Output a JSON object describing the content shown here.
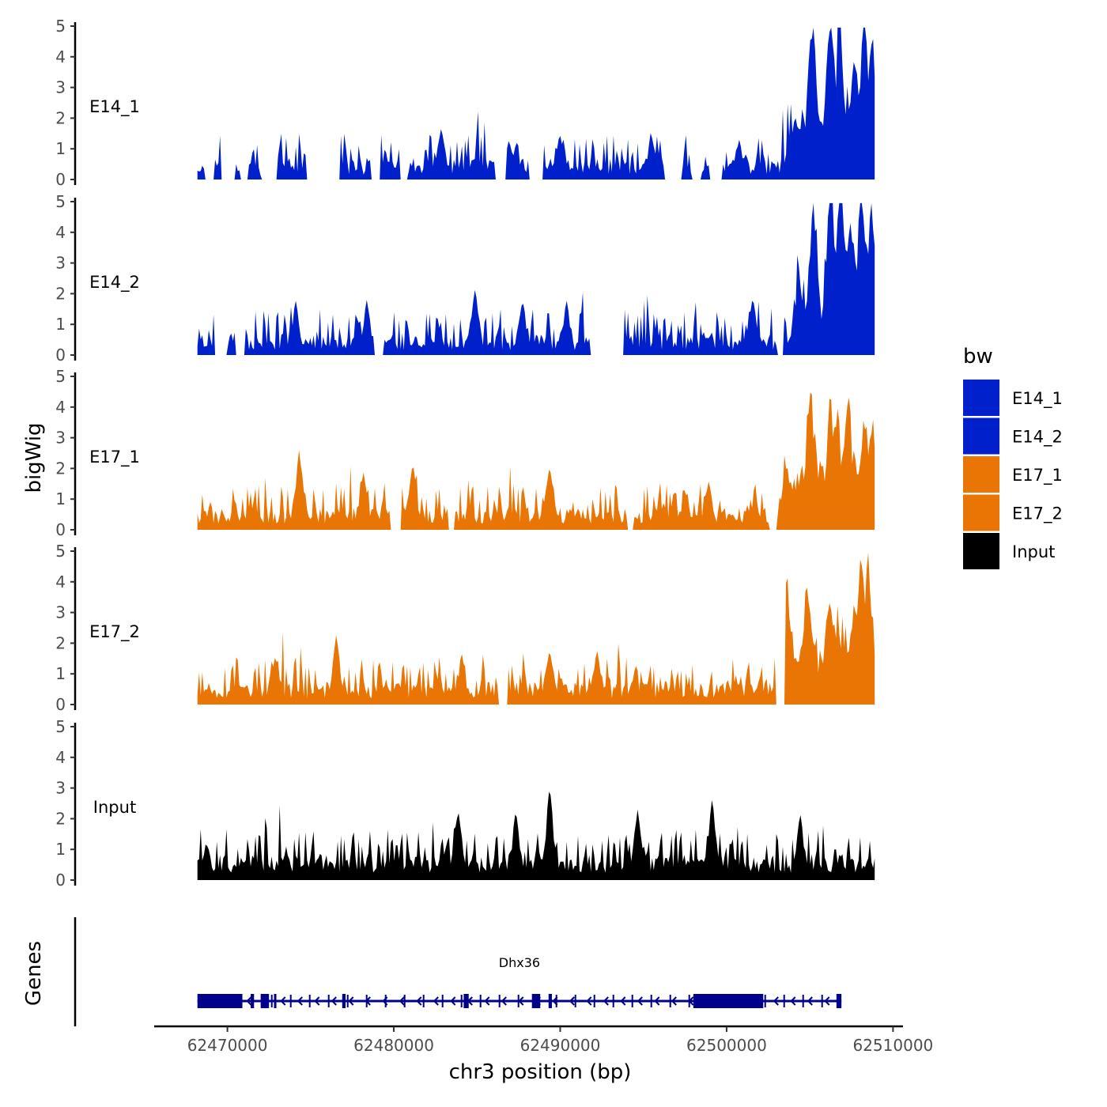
{
  "chart_data": {
    "type": "area",
    "ylabel": "bigWig",
    "xlabel": "chr3 position (bp)",
    "gene_track_label": "Genes",
    "ylim": [
      0,
      5
    ],
    "y_ticks": [
      "0",
      "1",
      "2",
      "3",
      "4",
      "5"
    ],
    "xlim": [
      62465600,
      62510600
    ],
    "x_ticks": [
      62470000,
      62480000,
      62490000,
      62500000,
      62510000
    ],
    "x_tick_labels": [
      "62470000",
      "62480000",
      "62490000",
      "62500000",
      "62510000"
    ],
    "data_range": [
      62468200,
      62508900
    ],
    "legend": {
      "title": "bw",
      "entries": [
        {
          "name": "E14_1",
          "color": "#0020CC"
        },
        {
          "name": "E14_2",
          "color": "#0020CC"
        },
        {
          "name": "E17_1",
          "color": "#E87504"
        },
        {
          "name": "E17_2",
          "color": "#E87504"
        },
        {
          "name": "Input",
          "color": "#000000"
        }
      ]
    },
    "series": [
      {
        "name": "E14_1",
        "color": "#0020CC",
        "gaps": [
          [
            0.01,
            0.025
          ],
          [
            0.035,
            0.055
          ],
          [
            0.062,
            0.075
          ],
          [
            0.095,
            0.118
          ],
          [
            0.16,
            0.21
          ],
          [
            0.255,
            0.27
          ],
          [
            0.3,
            0.31
          ],
          [
            0.44,
            0.455
          ],
          [
            0.49,
            0.51
          ],
          [
            0.69,
            0.715
          ],
          [
            0.73,
            0.745
          ],
          [
            0.755,
            0.775
          ]
        ],
        "peaks": [
          [
            0.908,
            3.9
          ],
          [
            0.935,
            4.5
          ],
          [
            0.948,
            4.1
          ],
          [
            0.97,
            3.2
          ],
          [
            0.985,
            4.4
          ],
          [
            0.996,
            3.3
          ],
          [
            0.36,
            1.7
          ],
          [
            0.46,
            1.3
          ],
          [
            0.535,
            1.5
          ],
          [
            0.114,
            1.5
          ],
          [
            0.165,
            1.1
          ],
          [
            0.67,
            1.5
          ],
          [
            0.8,
            1.3
          ]
        ],
        "base": 0.4,
        "noise": 0.9,
        "end_ramp": [
          0.87,
          1.3
        ],
        "seed": 11
      },
      {
        "name": "E14_2",
        "color": "#0020CC",
        "gaps": [
          [
            0.025,
            0.045
          ],
          [
            0.055,
            0.07
          ],
          [
            0.26,
            0.275
          ],
          [
            0.58,
            0.63
          ],
          [
            0.855,
            0.865
          ]
        ],
        "peaks": [
          [
            0.91,
            3.4
          ],
          [
            0.935,
            4.6
          ],
          [
            0.95,
            4.7
          ],
          [
            0.965,
            3.2
          ],
          [
            0.98,
            4.7
          ],
          [
            0.995,
            3.7
          ],
          [
            0.41,
            2.2
          ],
          [
            0.25,
            1.8
          ],
          [
            0.145,
            1.8
          ],
          [
            0.48,
            1.8
          ],
          [
            0.545,
            1.8
          ],
          [
            0.82,
            1.9
          ]
        ],
        "base": 0.4,
        "noise": 0.9,
        "end_ramp": [
          0.88,
          1.4
        ],
        "seed": 23
      },
      {
        "name": "E17_1",
        "color": "#E87504",
        "gaps": [
          [
            0.285,
            0.3
          ],
          [
            0.37,
            0.38
          ],
          [
            0.635,
            0.645
          ],
          [
            0.845,
            0.855
          ]
        ],
        "peaks": [
          [
            0.15,
            2.6
          ],
          [
            0.245,
            1.9
          ],
          [
            0.318,
            2.2
          ],
          [
            0.905,
            3.5
          ],
          [
            0.935,
            2.9
          ],
          [
            0.945,
            2.5
          ],
          [
            0.96,
            3.3
          ],
          [
            0.985,
            2.6
          ],
          [
            0.997,
            2.5
          ],
          [
            0.52,
            2.1
          ],
          [
            0.755,
            1.6
          ]
        ],
        "base": 0.5,
        "noise": 0.9,
        "end_ramp": [
          0.86,
          1.2
        ],
        "seed": 37
      },
      {
        "name": "E17_2",
        "color": "#E87504",
        "gaps": [
          [
            0.445,
            0.458
          ],
          [
            0.853,
            0.868
          ]
        ],
        "peaks": [
          [
            0.205,
            2.3
          ],
          [
            0.115,
            1.6
          ],
          [
            0.87,
            2.9
          ],
          [
            0.9,
            2.8
          ],
          [
            0.935,
            2.4
          ],
          [
            0.97,
            2.1
          ],
          [
            0.98,
            3.7
          ],
          [
            0.99,
            3.8
          ],
          [
            0.39,
            1.7
          ],
          [
            0.52,
            1.8
          ],
          [
            0.59,
            1.8
          ]
        ],
        "base": 0.5,
        "noise": 0.9,
        "end_ramp": [
          0.86,
          1.1
        ],
        "seed": 53
      },
      {
        "name": "Input",
        "color": "#000000",
        "gaps": [],
        "peaks": [
          [
            0.52,
            3.1
          ],
          [
            0.47,
            2.3
          ],
          [
            0.385,
            2.3
          ],
          [
            0.76,
            2.7
          ],
          [
            0.65,
            2.3
          ],
          [
            0.89,
            2.2
          ]
        ],
        "base": 0.6,
        "noise": 1.0,
        "end_ramp": [
          0.99,
          0.0
        ],
        "seed": 71
      }
    ],
    "gene": {
      "name": "Dhx36",
      "strand": "-",
      "color": "#00008B",
      "start": 62468200,
      "end": 62506900,
      "exons": [
        [
          62468200,
          62470900
        ],
        [
          62471400,
          62471600
        ],
        [
          62472000,
          62472500
        ],
        [
          62472800,
          62472900
        ],
        [
          62476900,
          62477100
        ],
        [
          62484200,
          62484500
        ],
        [
          62488300,
          62488800
        ],
        [
          62489300,
          62489500
        ],
        [
          62498000,
          62502200
        ],
        [
          62506600,
          62506900
        ]
      ]
    }
  }
}
